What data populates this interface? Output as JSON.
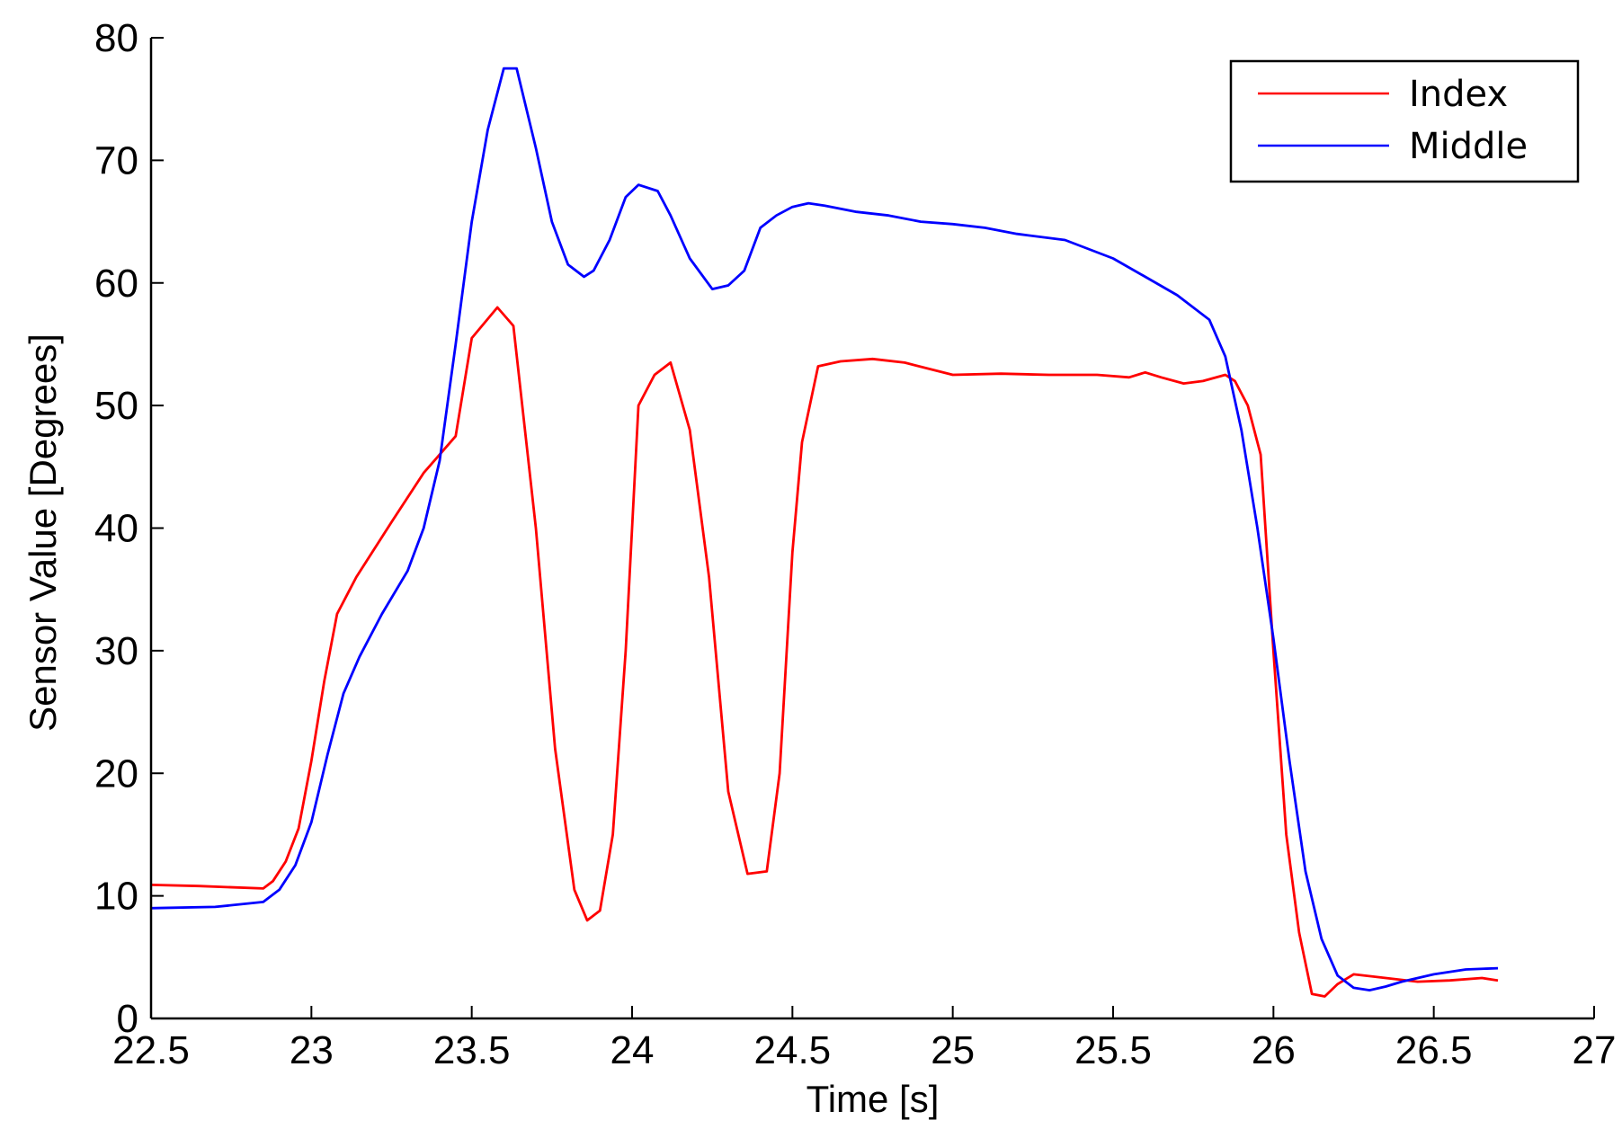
{
  "chart_data": {
    "type": "line",
    "title": "",
    "xlabel": "Time [s]",
    "ylabel": "Sensor Value [Degrees]",
    "xlim": [
      22.5,
      27
    ],
    "ylim": [
      0,
      80
    ],
    "xticks": [
      "22.5",
      "23",
      "23.5",
      "24",
      "24.5",
      "25",
      "25.5",
      "26",
      "26.5",
      "27"
    ],
    "xtick_values": [
      22.5,
      23,
      23.5,
      24,
      24.5,
      25,
      25.5,
      26,
      26.5,
      27
    ],
    "yticks": [
      "0",
      "10",
      "20",
      "30",
      "40",
      "50",
      "60",
      "70",
      "80"
    ],
    "ytick_values": [
      0,
      10,
      20,
      30,
      40,
      50,
      60,
      70,
      80
    ],
    "grid": false,
    "legend_position": "top-right",
    "series": [
      {
        "name": "Index",
        "color": "#ff0000",
        "x": [
          22.5,
          22.65,
          22.85,
          22.88,
          22.92,
          22.96,
          23.0,
          23.04,
          23.08,
          23.14,
          23.25,
          23.35,
          23.4,
          23.45,
          23.5,
          23.58,
          23.63,
          23.7,
          23.76,
          23.82,
          23.86,
          23.9,
          23.94,
          23.98,
          24.02,
          24.07,
          24.12,
          24.18,
          24.24,
          24.3,
          24.36,
          24.42,
          24.46,
          24.5,
          24.53,
          24.58,
          24.65,
          24.75,
          24.85,
          25.0,
          25.15,
          25.3,
          25.45,
          25.55,
          25.6,
          25.65,
          25.72,
          25.78,
          25.85,
          25.88,
          25.92,
          25.96,
          26.0,
          26.04,
          26.08,
          26.12,
          26.16,
          26.2,
          26.25,
          26.35,
          26.45,
          26.55,
          26.65,
          26.7
        ],
        "values": [
          10.9,
          10.8,
          10.6,
          11.2,
          12.8,
          15.5,
          21.0,
          27.5,
          33.0,
          36.0,
          40.5,
          44.5,
          46.0,
          47.5,
          55.5,
          58.0,
          56.5,
          40.0,
          22.0,
          10.5,
          8.0,
          8.8,
          15.0,
          30.0,
          50.0,
          52.5,
          53.5,
          48.0,
          36.0,
          18.5,
          11.8,
          12.0,
          20.0,
          38.0,
          47.0,
          53.2,
          53.6,
          53.8,
          53.5,
          52.5,
          52.6,
          52.5,
          52.5,
          52.3,
          52.7,
          52.3,
          51.8,
          52.0,
          52.5,
          52.0,
          50.0,
          46.0,
          30.0,
          15.0,
          7.0,
          2.0,
          1.8,
          2.8,
          3.6,
          3.3,
          3.0,
          3.1,
          3.3,
          3.1
        ]
      },
      {
        "name": "Middle",
        "color": "#0000ff",
        "x": [
          22.5,
          22.7,
          22.85,
          22.9,
          22.95,
          23.0,
          23.05,
          23.1,
          23.15,
          23.22,
          23.3,
          23.35,
          23.4,
          23.45,
          23.5,
          23.55,
          23.6,
          23.64,
          23.7,
          23.75,
          23.8,
          23.85,
          23.88,
          23.93,
          23.98,
          24.02,
          24.08,
          24.12,
          24.18,
          24.25,
          24.3,
          24.35,
          24.4,
          24.45,
          24.5,
          24.55,
          24.6,
          24.7,
          24.8,
          24.9,
          25.0,
          25.1,
          25.2,
          25.35,
          25.5,
          25.6,
          25.7,
          25.8,
          25.85,
          25.9,
          25.95,
          26.0,
          26.05,
          26.1,
          26.15,
          26.2,
          26.25,
          26.3,
          26.35,
          26.4,
          26.5,
          26.6,
          26.7
        ],
        "values": [
          9.0,
          9.1,
          9.5,
          10.5,
          12.5,
          16.0,
          21.5,
          26.5,
          29.5,
          33.0,
          36.5,
          40.0,
          45.5,
          55.0,
          65.0,
          72.5,
          77.5,
          77.5,
          71.0,
          65.0,
          61.5,
          60.5,
          61.0,
          63.5,
          67.0,
          68.0,
          67.5,
          65.5,
          62.0,
          59.5,
          59.8,
          61.0,
          64.5,
          65.5,
          66.2,
          66.5,
          66.3,
          65.8,
          65.5,
          65.0,
          64.8,
          64.5,
          64.0,
          63.5,
          62.0,
          60.5,
          59.0,
          57.0,
          54.0,
          48.0,
          40.0,
          31.0,
          21.0,
          12.0,
          6.5,
          3.5,
          2.5,
          2.3,
          2.6,
          3.0,
          3.6,
          4.0,
          4.1
        ]
      }
    ]
  }
}
